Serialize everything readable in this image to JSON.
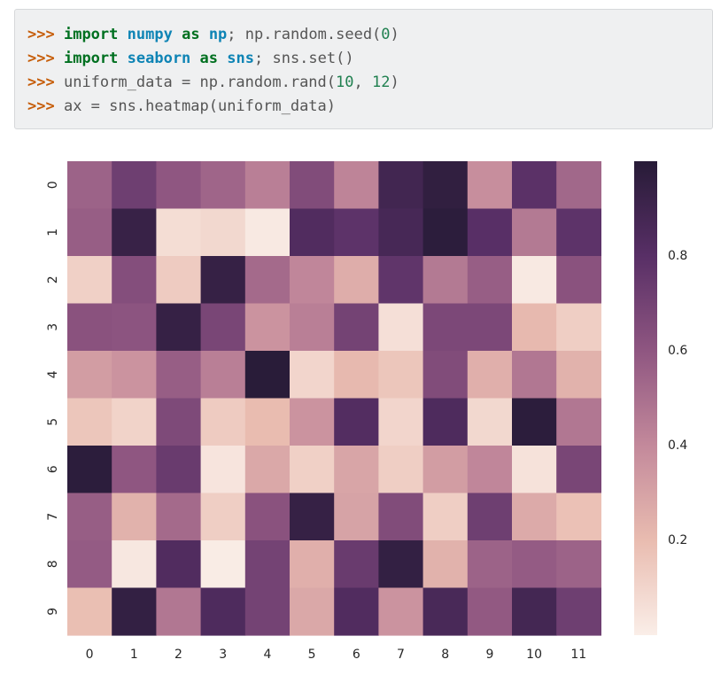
{
  "code": {
    "prompt": ">>>",
    "lines": [
      [
        {
          "t": "import",
          "c": "kw"
        },
        {
          "t": " ",
          "c": "plain"
        },
        {
          "t": "numpy",
          "c": "mod"
        },
        {
          "t": " ",
          "c": "plain"
        },
        {
          "t": "as",
          "c": "kw"
        },
        {
          "t": " ",
          "c": "plain"
        },
        {
          "t": "np",
          "c": "mod"
        },
        {
          "t": "; np.random.seed(",
          "c": "plain"
        },
        {
          "t": "0",
          "c": "num"
        },
        {
          "t": ")",
          "c": "plain"
        }
      ],
      [
        {
          "t": "import",
          "c": "kw"
        },
        {
          "t": " ",
          "c": "plain"
        },
        {
          "t": "seaborn",
          "c": "mod"
        },
        {
          "t": " ",
          "c": "plain"
        },
        {
          "t": "as",
          "c": "kw"
        },
        {
          "t": " ",
          "c": "plain"
        },
        {
          "t": "sns",
          "c": "mod"
        },
        {
          "t": "; sns.set()",
          "c": "plain"
        }
      ],
      [
        {
          "t": "uniform_data = np.random.rand(",
          "c": "plain"
        },
        {
          "t": "10",
          "c": "num"
        },
        {
          "t": ", ",
          "c": "plain"
        },
        {
          "t": "12",
          "c": "num"
        },
        {
          "t": ")",
          "c": "plain"
        }
      ],
      [
        {
          "t": "ax = sns.heatmap(uniform_data)",
          "c": "plain"
        }
      ]
    ]
  },
  "chart_data": {
    "type": "heatmap",
    "x_categories": [
      "0",
      "1",
      "2",
      "3",
      "4",
      "5",
      "6",
      "7",
      "8",
      "9",
      "10",
      "11"
    ],
    "y_categories": [
      "0",
      "1",
      "2",
      "3",
      "4",
      "5",
      "6",
      "7",
      "8",
      "9"
    ],
    "values": [
      [
        0.55,
        0.72,
        0.6,
        0.54,
        0.44,
        0.65,
        0.42,
        0.89,
        0.96,
        0.38,
        0.79,
        0.53
      ],
      [
        0.57,
        0.93,
        0.07,
        0.09,
        0.02,
        0.83,
        0.78,
        0.87,
        0.98,
        0.8,
        0.46,
        0.78
      ],
      [
        0.12,
        0.64,
        0.14,
        0.94,
        0.52,
        0.41,
        0.26,
        0.77,
        0.46,
        0.57,
        0.02,
        0.62
      ],
      [
        0.62,
        0.61,
        0.94,
        0.68,
        0.36,
        0.44,
        0.7,
        0.06,
        0.67,
        0.67,
        0.21,
        0.13
      ],
      [
        0.32,
        0.36,
        0.57,
        0.44,
        0.99,
        0.1,
        0.21,
        0.16,
        0.65,
        0.25,
        0.47,
        0.24
      ],
      [
        0.16,
        0.11,
        0.66,
        0.14,
        0.2,
        0.36,
        0.82,
        0.1,
        0.84,
        0.09,
        0.98,
        0.47
      ],
      [
        0.98,
        0.6,
        0.74,
        0.04,
        0.28,
        0.12,
        0.29,
        0.13,
        0.32,
        0.41,
        0.05,
        0.68
      ],
      [
        0.57,
        0.24,
        0.52,
        0.13,
        0.62,
        0.94,
        0.3,
        0.65,
        0.13,
        0.72,
        0.27,
        0.18
      ],
      [
        0.58,
        0.03,
        0.83,
        0.01,
        0.7,
        0.25,
        0.74,
        0.95,
        0.24,
        0.55,
        0.58,
        0.55
      ],
      [
        0.19,
        0.95,
        0.47,
        0.84,
        0.7,
        0.28,
        0.83,
        0.36,
        0.86,
        0.59,
        0.88,
        0.72
      ]
    ],
    "colorbar": {
      "min": 0.0,
      "max": 1.0,
      "ticks": [
        0.2,
        0.4,
        0.6,
        0.8
      ],
      "tick_labels": [
        "0.2",
        "0.4",
        "0.6",
        "0.8"
      ]
    },
    "colormap": [
      "#faeee8",
      "#e9bcb0",
      "#c3899b",
      "#8f5681",
      "#582f66",
      "#271b37"
    ],
    "grid": false
  }
}
